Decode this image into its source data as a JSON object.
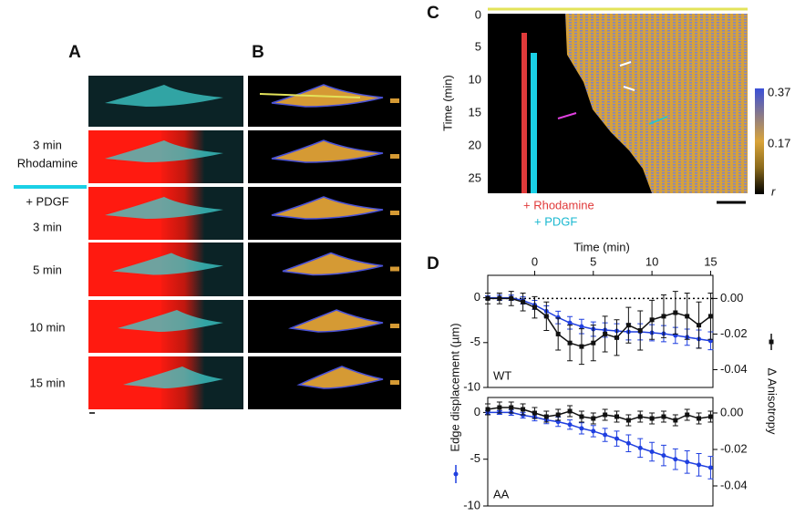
{
  "panels": {
    "A": {
      "letter": "A",
      "rows": [
        "3 min",
        "Rhodamine",
        "+ PDGF",
        "3 min",
        "5 min",
        "10 min",
        "15 min"
      ]
    },
    "B": {
      "letter": "B"
    },
    "C": {
      "letter": "C",
      "y_label": "Time (min)",
      "yticks": [
        "0",
        "5",
        "10",
        "15",
        "20",
        "25"
      ],
      "colorbar": [
        "0.37",
        "0.17",
        "r"
      ],
      "rhodamine": "+ Rhodamine",
      "pdgf": "+ PDGF"
    },
    "D": {
      "letter": "D",
      "x_label": "Time (min)",
      "y_label": "Edge displacement (µm)",
      "y2_label": "Δ Anisotropy"
    }
  },
  "chart_data": [
    {
      "type": "line",
      "label": "WT",
      "xlim": [
        -4,
        15.2
      ],
      "xticks": [
        0,
        5,
        10,
        15
      ],
      "ylim": [
        -10,
        2.5
      ],
      "yticks": [
        0,
        -5,
        -10
      ],
      "y2lim": [
        -0.05,
        0.013
      ],
      "y2ticks": [
        {
          "value": 0,
          "label": "0.00"
        },
        -0.02,
        -0.04
      ],
      "hline": {
        "value": 0,
        "axis": "y2"
      },
      "x": [
        -4,
        -3,
        -2,
        -1,
        0,
        1,
        2,
        3,
        4,
        5,
        6,
        7,
        8,
        9,
        10,
        11,
        12,
        13,
        14,
        15
      ],
      "series": [
        {
          "color": "#1f3fe0",
          "values": [
            0,
            0,
            0,
            -0.3,
            -0.8,
            -1.5,
            -2.2,
            -2.8,
            -3.2,
            -3.5,
            -3.6,
            -3.7,
            -3.8,
            -3.8,
            -3.9,
            -4,
            -4.2,
            -4.4,
            -4.6,
            -4.8
          ],
          "errors": [
            0.2,
            0.3,
            0.3,
            0.4,
            0.5,
            0.6,
            0.7,
            0.7,
            0.8,
            0.8,
            0.8,
            0.8,
            0.9,
            0.9,
            0.9,
            0.9,
            0.9,
            0.9,
            1,
            1
          ]
        },
        {
          "color": "#111111",
          "axis": "y2",
          "values": [
            0,
            0,
            0,
            -0.002,
            -0.005,
            -0.01,
            -0.02,
            -0.025,
            -0.027,
            -0.025,
            -0.02,
            -0.022,
            -0.015,
            -0.018,
            -0.012,
            -0.01,
            -0.008,
            -0.01,
            -0.015,
            -0.01
          ],
          "errors": [
            0.003,
            0.003,
            0.004,
            0.005,
            0.006,
            0.008,
            0.009,
            0.01,
            0.01,
            0.01,
            0.01,
            0.01,
            0.01,
            0.011,
            0.011,
            0.012,
            0.012,
            0.013,
            0.013,
            0.013
          ]
        }
      ]
    },
    {
      "type": "line",
      "label": "AA",
      "xlim": [
        -4,
        15.2
      ],
      "ylim": [
        -10,
        1.6
      ],
      "yticks": [
        0,
        -5,
        -10
      ],
      "y2lim": [
        -0.051,
        0.0085
      ],
      "y2ticks": [
        {
          "value": 0,
          "label": "0.00"
        },
        -0.02,
        -0.04
      ],
      "x": [
        -4,
        -3,
        -2,
        -1,
        0,
        1,
        2,
        3,
        4,
        5,
        6,
        7,
        8,
        9,
        10,
        11,
        12,
        13,
        14,
        15
      ],
      "series": [
        {
          "color": "#1f3fe0",
          "values": [
            0,
            0,
            0,
            -0.3,
            -0.5,
            -0.8,
            -1,
            -1.3,
            -1.7,
            -2,
            -2.4,
            -2.8,
            -3.3,
            -3.8,
            -4.2,
            -4.6,
            -5,
            -5.3,
            -5.6,
            -5.9
          ],
          "errors": [
            0.2,
            0.2,
            0.3,
            0.3,
            0.4,
            0.4,
            0.5,
            0.5,
            0.6,
            0.6,
            0.7,
            0.8,
            0.9,
            1,
            1,
            1.1,
            1.1,
            1.2,
            1.2,
            1.2
          ]
        },
        {
          "color": "#111111",
          "axis": "y2",
          "values": [
            0.002,
            0.003,
            0.003,
            0.002,
            0,
            -0.002,
            -0.001,
            0.001,
            -0.002,
            -0.003,
            -0.001,
            -0.002,
            -0.004,
            -0.002,
            -0.003,
            -0.002,
            -0.004,
            -0.001,
            -0.003,
            -0.002
          ],
          "errors": [
            0.003,
            0.003,
            0.003,
            0.003,
            0.003,
            0.003,
            0.003,
            0.003,
            0.003,
            0.003,
            0.003,
            0.003,
            0.003,
            0.003,
            0.003,
            0.003,
            0.003,
            0.003,
            0.003,
            0.003
          ]
        }
      ]
    }
  ]
}
